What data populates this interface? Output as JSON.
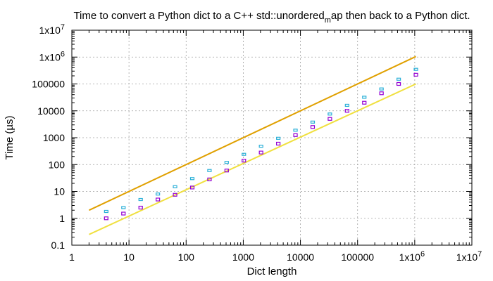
{
  "chart_data": {
    "type": "line",
    "title": "Time to convert a Python dict to a C++ std::unordered_map then back to a Python dict.",
    "title_parts": {
      "before": "Time to convert a Python dict to a C++ std::unordered",
      "subscript": "m",
      "after": "ap then back to a Python dict."
    },
    "xlabel": "Dict length",
    "ylabel": "Time (µs)",
    "xscale": "log",
    "yscale": "log",
    "xlim": [
      1,
      10000000
    ],
    "ylim": [
      0.1,
      10000000
    ],
    "grid": true,
    "legend": "none",
    "x_tick_labels": [
      {
        "value": 1,
        "label": "1",
        "sup": ""
      },
      {
        "value": 10,
        "label": "10",
        "sup": ""
      },
      {
        "value": 100,
        "label": "100",
        "sup": ""
      },
      {
        "value": 1000,
        "label": "1000",
        "sup": ""
      },
      {
        "value": 10000,
        "label": "10000",
        "sup": ""
      },
      {
        "value": 100000,
        "label": "100000",
        "sup": ""
      },
      {
        "value": 1000000,
        "label": "1x10",
        "sup": "6"
      },
      {
        "value": 10000000,
        "label": "1x10",
        "sup": "7"
      }
    ],
    "y_tick_labels": [
      {
        "value": 0.1,
        "label": "0.1",
        "sup": ""
      },
      {
        "value": 1,
        "label": "1",
        "sup": ""
      },
      {
        "value": 10,
        "label": "10",
        "sup": ""
      },
      {
        "value": 100,
        "label": "100",
        "sup": ""
      },
      {
        "value": 1000,
        "label": "1000",
        "sup": ""
      },
      {
        "value": 10000,
        "label": "10000",
        "sup": ""
      },
      {
        "value": 100000,
        "label": "100000",
        "sup": ""
      },
      {
        "value": 1000000,
        "label": "1x10",
        "sup": "6"
      },
      {
        "value": 10000000,
        "label": "1x10",
        "sup": "7"
      }
    ],
    "reference_lines": [
      {
        "color": "#e0a000",
        "x": [
          2,
          1048576
        ],
        "y": [
          2,
          1048576
        ]
      },
      {
        "color": "#f0e040",
        "x": [
          2,
          1048576
        ],
        "y": [
          0.25,
          100000
        ]
      }
    ],
    "series": [
      {
        "color": "#2bb0d8",
        "x": [
          4,
          8,
          16,
          32,
          64,
          128,
          256,
          512,
          1024,
          2048,
          4096,
          8192,
          16384,
          32768,
          65536,
          131072,
          262144,
          524288,
          1048576
        ],
        "y": [
          1.8,
          2.5,
          5,
          8,
          15,
          30,
          60,
          120,
          240,
          480,
          950,
          1900,
          3800,
          7600,
          16000,
          32000,
          65000,
          150000,
          350000
        ]
      },
      {
        "color": "#9400d3",
        "x": [
          4,
          8,
          16,
          32,
          64,
          128,
          256,
          512,
          1024,
          2048,
          4096,
          8192,
          16384,
          32768,
          65536,
          131072,
          262144,
          524288,
          1048576
        ],
        "y": [
          1,
          1.5,
          2.5,
          5,
          7.5,
          14,
          28,
          60,
          140,
          280,
          600,
          1250,
          2500,
          5000,
          10000,
          20000,
          45000,
          100000,
          220000
        ]
      }
    ]
  }
}
